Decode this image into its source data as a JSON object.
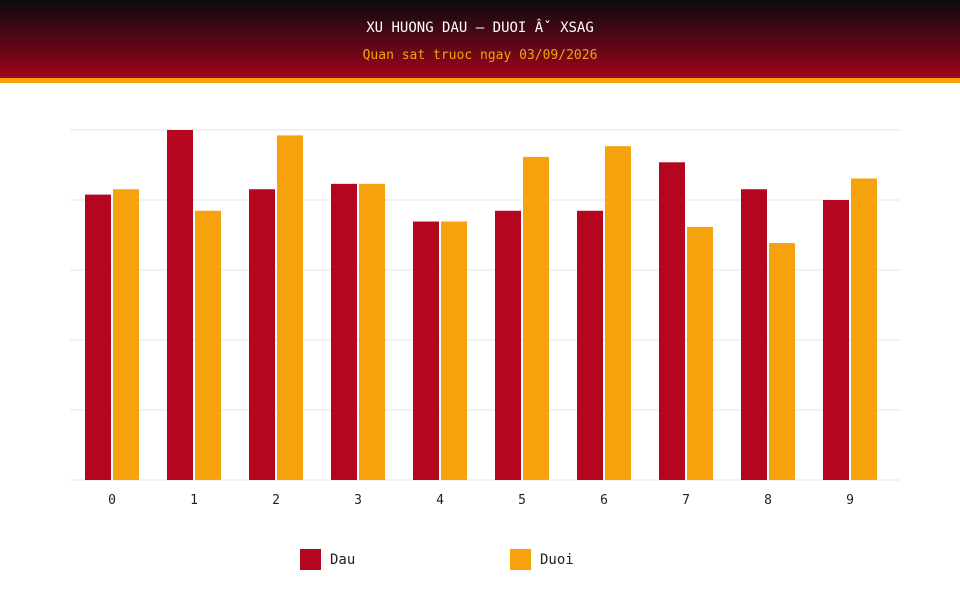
{
  "header": {
    "title": "XU HUONG DAU – DUOI Âˇ XSAG",
    "subtitle": "Quan sat truoc ngay 03/09/2026"
  },
  "colors": {
    "dau": "#b5061f",
    "duoi": "#f5a20c",
    "grid": "#e6e6e6"
  },
  "chart_data": {
    "type": "bar",
    "categories": [
      "0",
      "1",
      "2",
      "3",
      "4",
      "5",
      "6",
      "7",
      "8",
      "9"
    ],
    "series": [
      {
        "name": "Dau",
        "values": [
          26.5,
          32.5,
          27,
          27.5,
          24,
          25,
          25,
          29.5,
          27,
          26
        ]
      },
      {
        "name": "Duoi",
        "values": [
          27,
          25,
          32,
          27.5,
          24,
          30,
          31,
          23.5,
          22,
          28
        ]
      }
    ],
    "ylim": [
      0,
      32.5
    ],
    "grid": true,
    "legend": "bottom-center"
  },
  "legend": {
    "items": [
      {
        "label": "Dau"
      },
      {
        "label": "Duoi"
      }
    ]
  }
}
